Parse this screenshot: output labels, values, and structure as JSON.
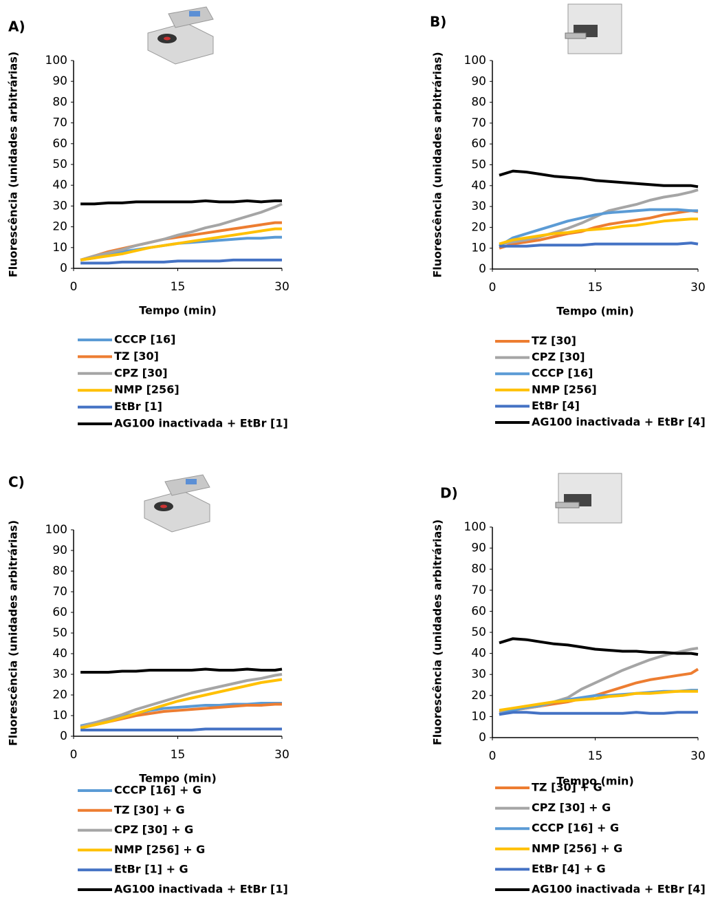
{
  "chart_data": [
    {
      "type": "line",
      "label": "A)",
      "xlabel": "Tempo (min)",
      "ylabel": "Fluorescência (unidades arbitrárias)",
      "x": [
        1,
        3,
        5,
        7,
        9,
        11,
        13,
        15,
        17,
        19,
        21,
        23,
        25,
        27,
        29,
        30
      ],
      "xlim": [
        0,
        30
      ],
      "xticks": [
        0,
        15,
        30
      ],
      "ylim": [
        0,
        100
      ],
      "yticks": [
        0,
        10,
        20,
        30,
        40,
        50,
        60,
        70,
        80,
        90,
        100
      ],
      "series": [
        {
          "name": "CCCP [16]",
          "color": "#5b9bd5",
          "values": [
            4,
            5,
            6.5,
            8,
            9,
            10,
            11,
            12,
            12.5,
            13,
            13.5,
            14,
            14.5,
            14.5,
            15,
            15
          ]
        },
        {
          "name": "TZ [30]",
          "color": "#ed7d31",
          "values": [
            4,
            6,
            8,
            9.5,
            11,
            12.5,
            14,
            15,
            16,
            17,
            18,
            19,
            20,
            21,
            22,
            22
          ]
        },
        {
          "name": "CPZ [30]",
          "color": "#a5a5a5",
          "values": [
            4,
            6,
            7.5,
            9,
            11,
            12.5,
            14,
            16,
            17.5,
            19.5,
            21,
            23,
            25,
            27,
            29.5,
            31
          ]
        },
        {
          "name": "NMP [256]",
          "color": "#ffc000",
          "values": [
            4,
            5,
            6,
            7,
            8.5,
            10,
            11,
            12,
            13,
            14,
            15,
            16,
            17,
            18,
            19,
            19
          ]
        },
        {
          "name": "EtBr [1]",
          "color": "#4472c4",
          "values": [
            2.5,
            2.5,
            2.5,
            3,
            3,
            3,
            3,
            3.5,
            3.5,
            3.5,
            3.5,
            4,
            4,
            4,
            4,
            4
          ]
        },
        {
          "name": "AG100 inactivada + EtBr [1]",
          "color": "#000000",
          "values": [
            31,
            31,
            31.5,
            31.5,
            32,
            32,
            32,
            32,
            32,
            32.5,
            32,
            32,
            32.5,
            32,
            32.5,
            32.5
          ]
        }
      ]
    },
    {
      "type": "line",
      "label": "B)",
      "xlabel": "Tempo (min)",
      "ylabel": "Fluorescência (unidades arbitrárias)",
      "x": [
        1,
        3,
        5,
        7,
        9,
        11,
        13,
        15,
        17,
        19,
        21,
        23,
        25,
        27,
        29,
        30
      ],
      "xlim": [
        0,
        30
      ],
      "xticks": [
        0,
        15,
        30
      ],
      "ylim": [
        0,
        100
      ],
      "yticks": [
        0,
        10,
        20,
        30,
        40,
        50,
        60,
        70,
        80,
        90,
        100
      ],
      "series": [
        {
          "name": "TZ [30]",
          "color": "#ed7d31",
          "values": [
            10,
            12,
            13,
            14,
            15.5,
            17,
            18,
            20,
            21.5,
            22.5,
            23.5,
            24.5,
            26,
            27,
            28,
            27.5
          ]
        },
        {
          "name": "CPZ [30]",
          "color": "#a5a5a5",
          "values": [
            12,
            13,
            14,
            15.5,
            17.5,
            19.5,
            22,
            25,
            28,
            29.5,
            31,
            33,
            34.5,
            35.5,
            37,
            38
          ]
        },
        {
          "name": "CCCP [16]",
          "color": "#5b9bd5",
          "values": [
            11,
            15,
            17,
            19,
            21,
            23,
            24.5,
            26,
            27,
            27.5,
            28,
            28.5,
            28.5,
            28.5,
            28,
            28
          ]
        },
        {
          "name": "NMP [256]",
          "color": "#ffc000",
          "values": [
            12,
            14,
            15,
            16,
            17,
            17.5,
            18.5,
            19,
            19.5,
            20.5,
            21,
            22,
            23,
            23.5,
            24,
            24
          ]
        },
        {
          "name": "EtBr [4]",
          "color": "#4472c4",
          "values": [
            11,
            11,
            11,
            11.5,
            11.5,
            11.5,
            11.5,
            12,
            12,
            12,
            12,
            12,
            12,
            12,
            12.5,
            12
          ]
        },
        {
          "name": "AG100 inactivada + EtBr [4]",
          "color": "#000000",
          "values": [
            45,
            47,
            46.5,
            45.5,
            44.5,
            44,
            43.5,
            42.5,
            42,
            41.5,
            41,
            40.5,
            40,
            40,
            40,
            39.5
          ]
        }
      ]
    },
    {
      "type": "line",
      "label": "C)",
      "xlabel": "Tempo (min)",
      "ylabel": "Fluorescência (unidades arbitrárias)",
      "x": [
        1,
        3,
        5,
        7,
        9,
        11,
        13,
        15,
        17,
        19,
        21,
        23,
        25,
        27,
        29,
        30
      ],
      "xlim": [
        0,
        30
      ],
      "xticks": [
        0,
        15,
        30
      ],
      "ylim": [
        0,
        100
      ],
      "yticks": [
        0,
        10,
        20,
        30,
        40,
        50,
        60,
        70,
        80,
        90,
        100
      ],
      "series": [
        {
          "name": "CCCP [16] + G",
          "color": "#5b9bd5",
          "values": [
            5,
            6.5,
            8,
            9.5,
            11,
            12.5,
            13.5,
            14,
            14.5,
            15,
            15,
            15.5,
            15.5,
            16,
            16,
            16
          ]
        },
        {
          "name": "TZ [30] + G",
          "color": "#ed7d31",
          "values": [
            4,
            5.5,
            7,
            8.5,
            10,
            11,
            12,
            12.5,
            13,
            13.5,
            14,
            14.5,
            15,
            15,
            15.5,
            15.5
          ]
        },
        {
          "name": "CPZ [30] + G",
          "color": "#a5a5a5",
          "values": [
            4.5,
            6.5,
            8.5,
            10.5,
            13,
            15,
            17,
            19,
            21,
            22.5,
            24,
            25.5,
            27,
            28,
            29.5,
            30
          ]
        },
        {
          "name": "NMP [256] + G",
          "color": "#ffc000",
          "values": [
            4,
            5.5,
            7,
            9,
            11,
            13,
            15,
            17,
            18.5,
            20,
            21.5,
            23,
            24.5,
            26,
            27,
            27.5
          ]
        },
        {
          "name": "EtBr [1] + G",
          "color": "#4472c4",
          "values": [
            3,
            3,
            3,
            3,
            3,
            3,
            3,
            3,
            3,
            3.5,
            3.5,
            3.5,
            3.5,
            3.5,
            3.5,
            3.5
          ]
        },
        {
          "name": "AG100 inactivada + EtBr [1]",
          "color": "#000000",
          "values": [
            31,
            31,
            31,
            31.5,
            31.5,
            32,
            32,
            32,
            32,
            32.5,
            32,
            32,
            32.5,
            32,
            32,
            32.5
          ]
        }
      ]
    },
    {
      "type": "line",
      "label": "D)",
      "xlabel": "Tempo (min)",
      "ylabel": "Fluorescência (unidades arbitrárias)",
      "x": [
        1,
        3,
        5,
        7,
        9,
        11,
        13,
        15,
        17,
        19,
        21,
        23,
        25,
        27,
        29,
        30
      ],
      "xlim": [
        0,
        30
      ],
      "xticks": [
        0,
        15,
        30
      ],
      "ylim": [
        0,
        100
      ],
      "yticks": [
        0,
        10,
        20,
        30,
        40,
        50,
        60,
        70,
        80,
        90,
        100
      ],
      "series": [
        {
          "name": "TZ [30] + G",
          "color": "#ed7d31",
          "values": [
            12,
            13,
            14,
            15,
            16,
            17,
            18.5,
            20,
            22,
            24,
            26,
            27.5,
            28.5,
            29.5,
            30.5,
            32.5
          ]
        },
        {
          "name": "CPZ [30] + G",
          "color": "#a5a5a5",
          "values": [
            12,
            13,
            14,
            15,
            17,
            19,
            23,
            26,
            29,
            32,
            34.5,
            37,
            39,
            40.5,
            42,
            42.5
          ]
        },
        {
          "name": "CCCP [16] + G",
          "color": "#5b9bd5",
          "values": [
            11,
            13,
            14.5,
            15.5,
            17,
            18,
            19,
            20,
            20,
            20.5,
            21,
            21.5,
            22,
            22,
            22.5,
            22.5
          ]
        },
        {
          "name": "NMP [256] + G",
          "color": "#ffc000",
          "values": [
            13,
            14,
            15,
            16,
            17,
            17.5,
            18,
            18.5,
            19.5,
            20,
            21,
            21,
            21.5,
            22,
            22,
            22
          ]
        },
        {
          "name": "EtBr [4] + G",
          "color": "#4472c4",
          "values": [
            11,
            12,
            12,
            11.5,
            11.5,
            11.5,
            11.5,
            11.5,
            11.5,
            11.5,
            12,
            11.5,
            11.5,
            12,
            12,
            12
          ]
        },
        {
          "name": "AG100 inactivada + EtBr [4]",
          "color": "#000000",
          "values": [
            45,
            47,
            46.5,
            45.5,
            44.5,
            44,
            43,
            42,
            41.5,
            41,
            41,
            40.5,
            40.5,
            40,
            40,
            39.5
          ]
        }
      ]
    }
  ]
}
